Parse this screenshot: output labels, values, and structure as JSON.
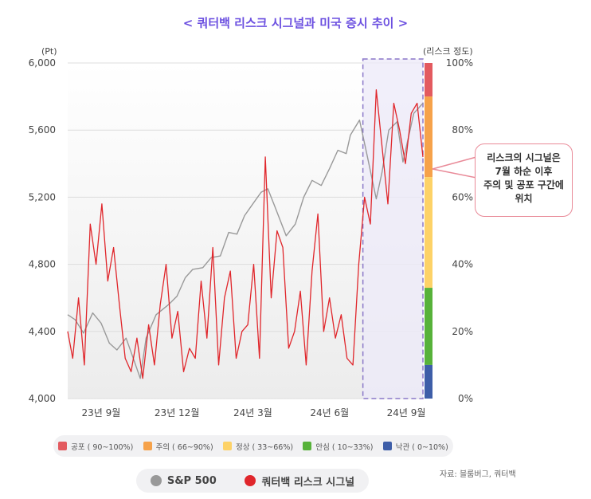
{
  "title": "< 쿼터백 리스크 시그널과 미국 증시 추이 >",
  "left_axis_unit": "(Pt)",
  "right_axis_unit": "(리스크 정도)",
  "callout": [
    "리스크의 시그널은",
    "7월 하순 이후",
    "주의 및 공포 구간에",
    "위치"
  ],
  "risk_zones": [
    {
      "label": "공포 ( 90~100%)",
      "from": 90,
      "to": 100,
      "color": "#e35a5f"
    },
    {
      "label": "주의 ( 66~90%)",
      "from": 66,
      "to": 90,
      "color": "#f6a24a"
    },
    {
      "label": "정상 ( 33~66%)",
      "from": 33,
      "to": 66,
      "color": "#fdd267"
    },
    {
      "label": "안심 ( 10~33%)",
      "from": 10,
      "to": 33,
      "color": "#57b23a"
    },
    {
      "label": "낙관 ( 0~10%)",
      "from": 0,
      "to": 10,
      "color": "#3e5ea8"
    }
  ],
  "series_legend": [
    {
      "name": "S&P 500",
      "color": "#999999"
    },
    {
      "name": "쿼터백 리스크 시그널",
      "color": "#e0262b"
    }
  ],
  "source": "자료: 블룸버그, 쿼터백",
  "chart_data": {
    "type": "line",
    "x_ticks": [
      "23년 9월",
      "23년 12월",
      "24년 3월",
      "24년 6월",
      "24년 9월"
    ],
    "left_y_ticks": [
      "4,000",
      "4,400",
      "4,800",
      "5,200",
      "5,600",
      "6,000"
    ],
    "right_y_ticks": [
      "0%",
      "20%",
      "40%",
      "60%",
      "80%",
      "100%"
    ],
    "ylim_left": [
      4000,
      6000
    ],
    "ylim_right": [
      0,
      100
    ],
    "highlight_period": {
      "from": "2024-07-20",
      "to": "2024-09-30"
    },
    "series": [
      {
        "name": "S&P 500",
        "color": "#999999",
        "dates": [
          "2023-08-01",
          "2023-08-10",
          "2023-08-20",
          "2023-08-31",
          "2023-09-10",
          "2023-09-20",
          "2023-09-29",
          "2023-10-10",
          "2023-10-20",
          "2023-10-27",
          "2023-11-03",
          "2023-11-15",
          "2023-11-30",
          "2023-12-10",
          "2023-12-20",
          "2023-12-29",
          "2024-01-10",
          "2024-01-20",
          "2024-01-31",
          "2024-02-10",
          "2024-02-20",
          "2024-02-29",
          "2024-03-10",
          "2024-03-20",
          "2024-03-28",
          "2024-04-05",
          "2024-04-19",
          "2024-04-30",
          "2024-05-10",
          "2024-05-20",
          "2024-05-31",
          "2024-06-10",
          "2024-06-20",
          "2024-06-30",
          "2024-07-05",
          "2024-07-16",
          "2024-07-25",
          "2024-08-05",
          "2024-08-12",
          "2024-08-20",
          "2024-08-30",
          "2024-09-06",
          "2024-09-10",
          "2024-09-19",
          "2024-09-30"
        ],
        "values": [
          4500,
          4470,
          4390,
          4510,
          4450,
          4330,
          4290,
          4360,
          4220,
          4120,
          4360,
          4500,
          4560,
          4610,
          4720,
          4770,
          4780,
          4840,
          4850,
          4990,
          4980,
          5090,
          5160,
          5230,
          5250,
          5150,
          4970,
          5040,
          5200,
          5300,
          5270,
          5370,
          5480,
          5460,
          5570,
          5660,
          5450,
          5190,
          5350,
          5600,
          5650,
          5410,
          5500,
          5700,
          5760
        ]
      },
      {
        "name": "쿼터백 리스크 시그널",
        "color": "#e0262b",
        "dates": [
          "2023-08-01",
          "2023-08-07",
          "2023-08-14",
          "2023-08-21",
          "2023-08-28",
          "2023-09-04",
          "2023-09-11",
          "2023-09-18",
          "2023-09-25",
          "2023-10-02",
          "2023-10-09",
          "2023-10-16",
          "2023-10-23",
          "2023-10-30",
          "2023-11-06",
          "2023-11-13",
          "2023-11-20",
          "2023-11-27",
          "2023-12-04",
          "2023-12-11",
          "2023-12-18",
          "2023-12-25",
          "2024-01-01",
          "2024-01-08",
          "2024-01-15",
          "2024-01-22",
          "2024-01-29",
          "2024-02-05",
          "2024-02-12",
          "2024-02-19",
          "2024-02-26",
          "2024-03-04",
          "2024-03-11",
          "2024-03-18",
          "2024-03-25",
          "2024-04-01",
          "2024-04-08",
          "2024-04-15",
          "2024-04-22",
          "2024-04-29",
          "2024-05-06",
          "2024-05-13",
          "2024-05-20",
          "2024-05-27",
          "2024-06-03",
          "2024-06-10",
          "2024-06-17",
          "2024-06-24",
          "2024-07-01",
          "2024-07-08",
          "2024-07-15",
          "2024-07-22",
          "2024-07-29",
          "2024-08-05",
          "2024-08-12",
          "2024-08-19",
          "2024-08-26",
          "2024-09-02",
          "2024-09-09",
          "2024-09-16",
          "2024-09-23",
          "2024-09-30"
        ],
        "values": [
          20,
          12,
          30,
          10,
          52,
          40,
          58,
          35,
          45,
          28,
          12,
          8,
          18,
          6,
          22,
          10,
          28,
          40,
          18,
          26,
          8,
          15,
          12,
          35,
          18,
          45,
          10,
          30,
          38,
          12,
          20,
          22,
          40,
          12,
          72,
          30,
          50,
          45,
          15,
          20,
          32,
          10,
          38,
          55,
          20,
          30,
          18,
          25,
          12,
          10,
          40,
          60,
          52,
          92,
          75,
          58,
          88,
          80,
          70,
          85,
          88,
          72
        ]
      }
    ]
  }
}
